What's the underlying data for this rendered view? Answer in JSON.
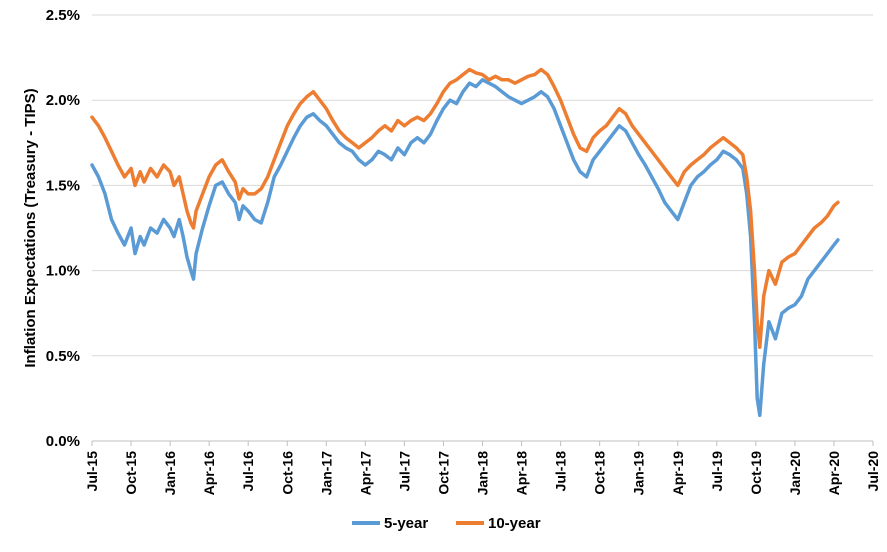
{
  "chart_data": {
    "type": "line",
    "title": "",
    "xlabel": "",
    "ylabel": "Inflation Expectations (Treasury - TIPS)",
    "ylim": [
      0,
      2.5
    ],
    "yticks": [
      "0.0%",
      "0.5%",
      "1.0%",
      "1.5%",
      "2.0%",
      "2.5%"
    ],
    "xticks": [
      "Jul-15",
      "Oct-15",
      "Jan-16",
      "Apr-16",
      "Jul-16",
      "Oct-16",
      "Jan-17",
      "Apr-17",
      "Jul-17",
      "Oct-17",
      "Jan-18",
      "Apr-18",
      "Jul-18",
      "Oct-18",
      "Jan-19",
      "Apr-19",
      "Jul-19",
      "Oct-19",
      "Jan-20",
      "Apr-20",
      "Jul-20"
    ],
    "grid": "horizontal",
    "legend": "bottom",
    "x_unit": "months since Jul-15",
    "series": [
      {
        "name": "5-year",
        "color": "#5B9BD5",
        "points": [
          [
            0,
            1.62
          ],
          [
            0.5,
            1.55
          ],
          [
            1,
            1.45
          ],
          [
            1.5,
            1.3
          ],
          [
            2,
            1.22
          ],
          [
            2.5,
            1.15
          ],
          [
            3,
            1.25
          ],
          [
            3.3,
            1.1
          ],
          [
            3.7,
            1.2
          ],
          [
            4,
            1.15
          ],
          [
            4.5,
            1.25
          ],
          [
            5,
            1.22
          ],
          [
            5.5,
            1.3
          ],
          [
            6,
            1.25
          ],
          [
            6.3,
            1.2
          ],
          [
            6.7,
            1.3
          ],
          [
            7,
            1.2
          ],
          [
            7.3,
            1.08
          ],
          [
            7.6,
            1.0
          ],
          [
            7.8,
            0.95
          ],
          [
            8,
            1.1
          ],
          [
            8.5,
            1.25
          ],
          [
            9,
            1.38
          ],
          [
            9.5,
            1.5
          ],
          [
            10,
            1.52
          ],
          [
            10.5,
            1.45
          ],
          [
            11,
            1.4
          ],
          [
            11.3,
            1.3
          ],
          [
            11.6,
            1.38
          ],
          [
            12,
            1.35
          ],
          [
            12.5,
            1.3
          ],
          [
            13,
            1.28
          ],
          [
            13.5,
            1.4
          ],
          [
            14,
            1.55
          ],
          [
            14.5,
            1.62
          ],
          [
            15,
            1.7
          ],
          [
            15.5,
            1.78
          ],
          [
            16,
            1.85
          ],
          [
            16.5,
            1.9
          ],
          [
            17,
            1.92
          ],
          [
            17.5,
            1.88
          ],
          [
            18,
            1.85
          ],
          [
            18.5,
            1.8
          ],
          [
            19,
            1.75
          ],
          [
            19.5,
            1.72
          ],
          [
            20,
            1.7
          ],
          [
            20.5,
            1.65
          ],
          [
            21,
            1.62
          ],
          [
            21.5,
            1.65
          ],
          [
            22,
            1.7
          ],
          [
            22.5,
            1.68
          ],
          [
            23,
            1.65
          ],
          [
            23.5,
            1.72
          ],
          [
            24,
            1.68
          ],
          [
            24.5,
            1.75
          ],
          [
            25,
            1.78
          ],
          [
            25.5,
            1.75
          ],
          [
            26,
            1.8
          ],
          [
            26.5,
            1.88
          ],
          [
            27,
            1.95
          ],
          [
            27.5,
            2.0
          ],
          [
            28,
            1.98
          ],
          [
            28.5,
            2.05
          ],
          [
            29,
            2.1
          ],
          [
            29.5,
            2.08
          ],
          [
            30,
            2.12
          ],
          [
            30.5,
            2.1
          ],
          [
            31,
            2.08
          ],
          [
            31.5,
            2.05
          ],
          [
            32,
            2.02
          ],
          [
            32.5,
            2.0
          ],
          [
            33,
            1.98
          ],
          [
            33.5,
            2.0
          ],
          [
            34,
            2.02
          ],
          [
            34.5,
            2.05
          ],
          [
            35,
            2.02
          ],
          [
            35.5,
            1.95
          ],
          [
            36,
            1.85
          ],
          [
            36.5,
            1.75
          ],
          [
            37,
            1.65
          ],
          [
            37.5,
            1.58
          ],
          [
            38,
            1.55
          ],
          [
            38.5,
            1.65
          ],
          [
            39,
            1.7
          ],
          [
            39.5,
            1.75
          ],
          [
            40,
            1.8
          ],
          [
            40.5,
            1.85
          ],
          [
            41,
            1.82
          ],
          [
            41.5,
            1.75
          ],
          [
            42,
            1.68
          ],
          [
            42.5,
            1.62
          ],
          [
            43,
            1.55
          ],
          [
            43.5,
            1.48
          ],
          [
            44,
            1.4
          ],
          [
            44.5,
            1.35
          ],
          [
            45,
            1.3
          ],
          [
            45.5,
            1.4
          ],
          [
            46,
            1.5
          ],
          [
            46.5,
            1.55
          ],
          [
            47,
            1.58
          ],
          [
            47.5,
            1.62
          ],
          [
            48,
            1.65
          ],
          [
            48.5,
            1.7
          ],
          [
            49,
            1.68
          ],
          [
            49.5,
            1.65
          ],
          [
            50,
            1.6
          ],
          [
            50.3,
            1.45
          ],
          [
            50.6,
            1.2
          ],
          [
            50.9,
            0.7
          ],
          [
            51.1,
            0.25
          ],
          [
            51.3,
            0.15
          ],
          [
            51.6,
            0.45
          ],
          [
            52,
            0.7
          ],
          [
            52.5,
            0.6
          ],
          [
            53,
            0.75
          ],
          [
            53.5,
            0.78
          ],
          [
            54,
            0.8
          ],
          [
            54.5,
            0.85
          ],
          [
            55,
            0.95
          ],
          [
            55.5,
            1.0
          ],
          [
            56,
            1.05
          ],
          [
            56.5,
            1.1
          ],
          [
            57,
            1.15
          ],
          [
            57.3,
            1.18
          ]
        ]
      },
      {
        "name": "10-year",
        "color": "#ED7D31",
        "points": [
          [
            0,
            1.9
          ],
          [
            0.5,
            1.85
          ],
          [
            1,
            1.78
          ],
          [
            1.5,
            1.7
          ],
          [
            2,
            1.62
          ],
          [
            2.5,
            1.55
          ],
          [
            3,
            1.6
          ],
          [
            3.3,
            1.5
          ],
          [
            3.7,
            1.58
          ],
          [
            4,
            1.52
          ],
          [
            4.5,
            1.6
          ],
          [
            5,
            1.55
          ],
          [
            5.5,
            1.62
          ],
          [
            6,
            1.58
          ],
          [
            6.3,
            1.5
          ],
          [
            6.7,
            1.55
          ],
          [
            7,
            1.45
          ],
          [
            7.3,
            1.35
          ],
          [
            7.6,
            1.28
          ],
          [
            7.8,
            1.25
          ],
          [
            8,
            1.35
          ],
          [
            8.5,
            1.45
          ],
          [
            9,
            1.55
          ],
          [
            9.5,
            1.62
          ],
          [
            10,
            1.65
          ],
          [
            10.5,
            1.58
          ],
          [
            11,
            1.52
          ],
          [
            11.3,
            1.42
          ],
          [
            11.6,
            1.48
          ],
          [
            12,
            1.45
          ],
          [
            12.5,
            1.45
          ],
          [
            13,
            1.48
          ],
          [
            13.5,
            1.55
          ],
          [
            14,
            1.65
          ],
          [
            14.5,
            1.75
          ],
          [
            15,
            1.85
          ],
          [
            15.5,
            1.92
          ],
          [
            16,
            1.98
          ],
          [
            16.5,
            2.02
          ],
          [
            17,
            2.05
          ],
          [
            17.5,
            2.0
          ],
          [
            18,
            1.95
          ],
          [
            18.5,
            1.88
          ],
          [
            19,
            1.82
          ],
          [
            19.5,
            1.78
          ],
          [
            20,
            1.75
          ],
          [
            20.5,
            1.72
          ],
          [
            21,
            1.75
          ],
          [
            21.5,
            1.78
          ],
          [
            22,
            1.82
          ],
          [
            22.5,
            1.85
          ],
          [
            23,
            1.82
          ],
          [
            23.5,
            1.88
          ],
          [
            24,
            1.85
          ],
          [
            24.5,
            1.88
          ],
          [
            25,
            1.9
          ],
          [
            25.5,
            1.88
          ],
          [
            26,
            1.92
          ],
          [
            26.5,
            1.98
          ],
          [
            27,
            2.05
          ],
          [
            27.5,
            2.1
          ],
          [
            28,
            2.12
          ],
          [
            28.5,
            2.15
          ],
          [
            29,
            2.18
          ],
          [
            29.5,
            2.16
          ],
          [
            30,
            2.15
          ],
          [
            30.5,
            2.12
          ],
          [
            31,
            2.14
          ],
          [
            31.5,
            2.12
          ],
          [
            32,
            2.12
          ],
          [
            32.5,
            2.1
          ],
          [
            33,
            2.12
          ],
          [
            33.5,
            2.14
          ],
          [
            34,
            2.15
          ],
          [
            34.5,
            2.18
          ],
          [
            35,
            2.15
          ],
          [
            35.5,
            2.08
          ],
          [
            36,
            2.0
          ],
          [
            36.5,
            1.9
          ],
          [
            37,
            1.8
          ],
          [
            37.5,
            1.72
          ],
          [
            38,
            1.7
          ],
          [
            38.5,
            1.78
          ],
          [
            39,
            1.82
          ],
          [
            39.5,
            1.85
          ],
          [
            40,
            1.9
          ],
          [
            40.5,
            1.95
          ],
          [
            41,
            1.92
          ],
          [
            41.5,
            1.85
          ],
          [
            42,
            1.8
          ],
          [
            42.5,
            1.75
          ],
          [
            43,
            1.7
          ],
          [
            43.5,
            1.65
          ],
          [
            44,
            1.6
          ],
          [
            44.5,
            1.55
          ],
          [
            45,
            1.5
          ],
          [
            45.5,
            1.58
          ],
          [
            46,
            1.62
          ],
          [
            46.5,
            1.65
          ],
          [
            47,
            1.68
          ],
          [
            47.5,
            1.72
          ],
          [
            48,
            1.75
          ],
          [
            48.5,
            1.78
          ],
          [
            49,
            1.75
          ],
          [
            49.5,
            1.72
          ],
          [
            50,
            1.68
          ],
          [
            50.3,
            1.55
          ],
          [
            50.6,
            1.35
          ],
          [
            50.9,
            1.0
          ],
          [
            51.1,
            0.7
          ],
          [
            51.3,
            0.55
          ],
          [
            51.6,
            0.85
          ],
          [
            52,
            1.0
          ],
          [
            52.5,
            0.92
          ],
          [
            53,
            1.05
          ],
          [
            53.5,
            1.08
          ],
          [
            54,
            1.1
          ],
          [
            54.5,
            1.15
          ],
          [
            55,
            1.2
          ],
          [
            55.5,
            1.25
          ],
          [
            56,
            1.28
          ],
          [
            56.5,
            1.32
          ],
          [
            57,
            1.38
          ],
          [
            57.3,
            1.4
          ]
        ]
      }
    ]
  }
}
